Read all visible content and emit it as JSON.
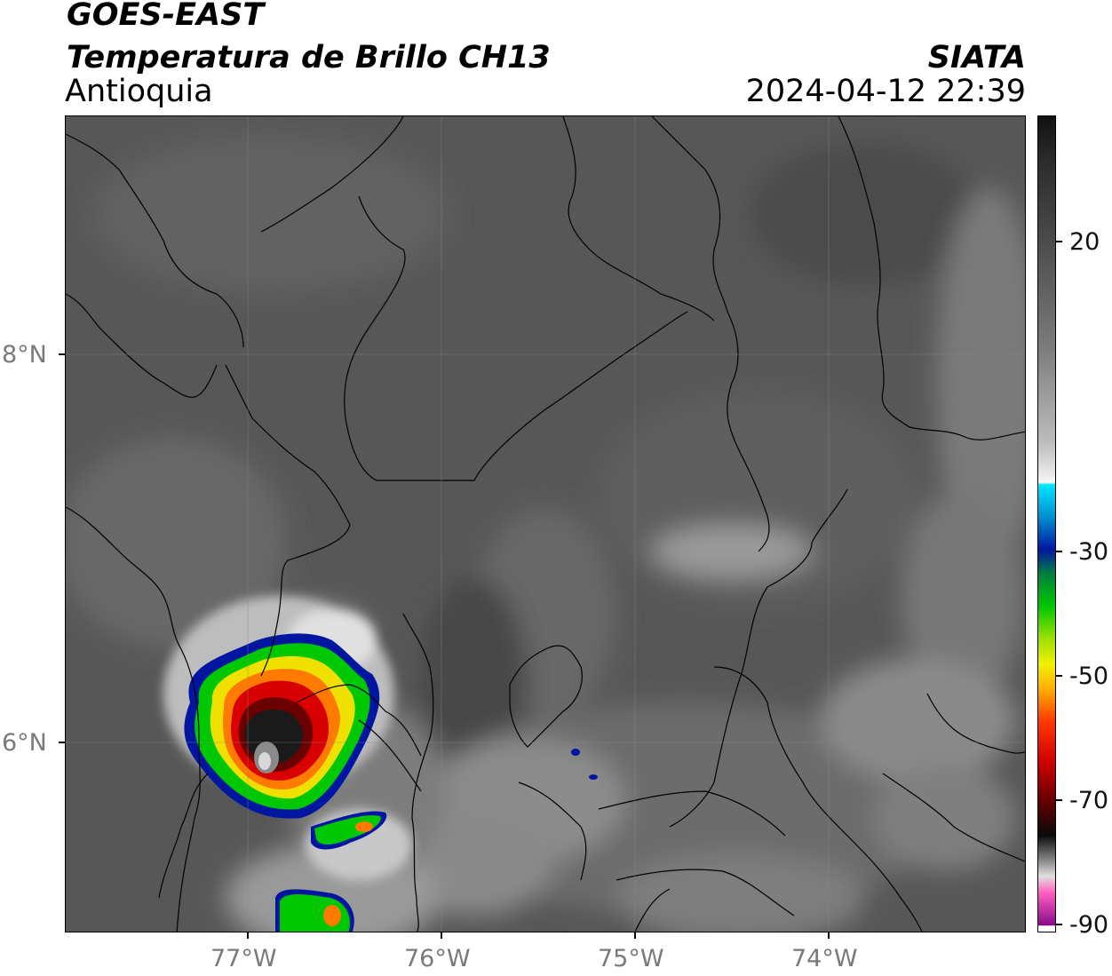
{
  "header": {
    "line1": "GOES-EAST",
    "line2": "Temperatura de Brillo CH13",
    "region": "Antioquia",
    "agency": "SIATA",
    "datetime": "2024-04-12 22:39"
  },
  "axes": {
    "lat_ticks": [
      "8°N",
      "6°N"
    ],
    "lon_ticks": [
      "77°W",
      "76°W",
      "75°W",
      "74°W"
    ]
  },
  "colorbar": {
    "tick_labels": [
      "20",
      "-30",
      "-50",
      "-70",
      "-90"
    ],
    "colors": {
      "grey_warm": "#4a4a4a",
      "grey_cold": "#f2f2f2",
      "cyan": "#00e5ff",
      "blue": "#0016a0",
      "green": "#00c800",
      "yellow": "#f0f000",
      "orange": "#ff8a00",
      "red": "#e00000",
      "dark_red": "#600000",
      "black": "#0a0a0a",
      "pink": "#ff60c0",
      "purple": "#8a0a8a"
    }
  }
}
